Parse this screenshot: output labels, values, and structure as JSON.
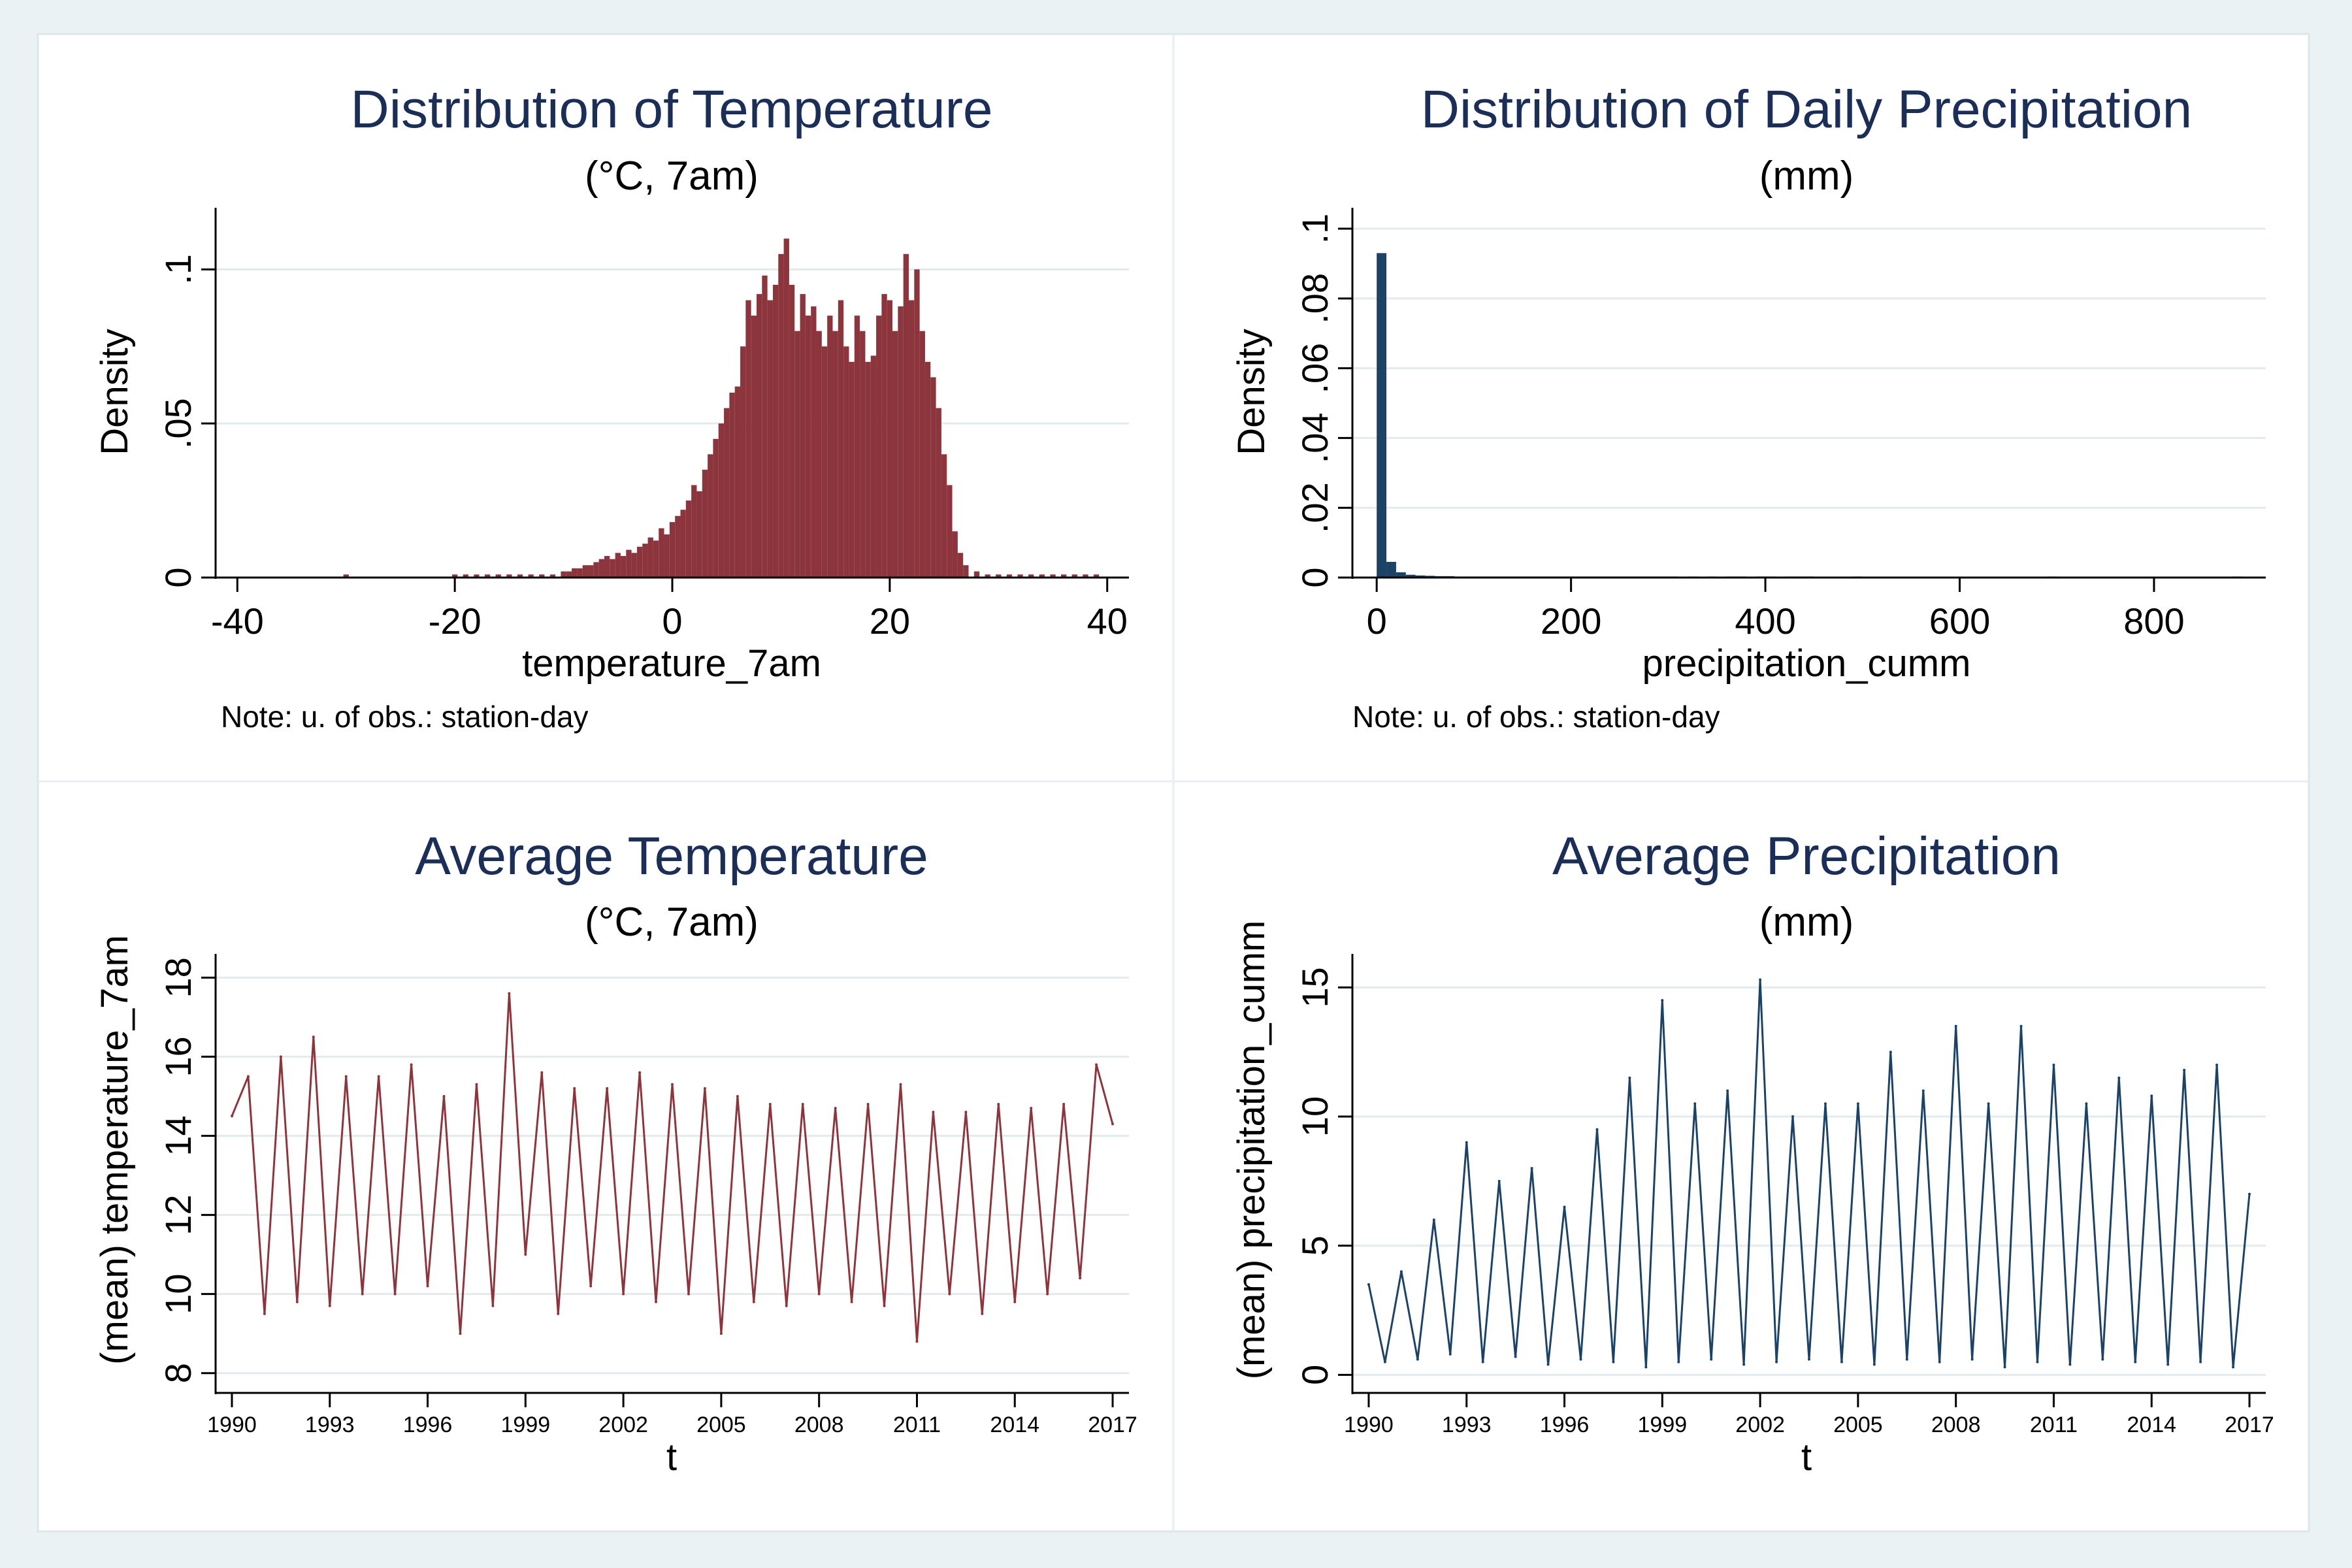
{
  "chart_data": [
    {
      "type": "bar",
      "title": "Distribution of Temperature",
      "subtitle": "(°C, 7am)",
      "xlabel": "temperature_7am",
      "ylabel": "Density",
      "note": "Note: u. of obs.: station-day",
      "xlim": [
        -42,
        42
      ],
      "ylim": [
        0,
        0.12
      ],
      "xticks": [
        "-40",
        "-20",
        "0",
        "20",
        "40"
      ],
      "yticks": [
        "0",
        ".05",
        ".1"
      ],
      "color": "#8c353d",
      "bin_width": 0.5,
      "x": [
        -30,
        -20,
        -19,
        -18,
        -17,
        -16,
        -15,
        -14,
        -13,
        -12,
        -11,
        -10,
        -9.5,
        -9,
        -8.5,
        -8,
        -7.5,
        -7,
        -6.5,
        -6,
        -5.5,
        -5,
        -4.5,
        -4,
        -3.5,
        -3,
        -2.5,
        -2,
        -1.5,
        -1,
        -0.5,
        0,
        0.5,
        1,
        1.5,
        2,
        2.5,
        3,
        3.5,
        4,
        4.5,
        5,
        5.5,
        6,
        6.5,
        7,
        7.5,
        8,
        8.5,
        9,
        9.5,
        10,
        10.5,
        11,
        11.5,
        12,
        12.5,
        13,
        13.5,
        14,
        14.5,
        15,
        15.5,
        16,
        16.5,
        17,
        17.5,
        18,
        18.5,
        19,
        19.5,
        20,
        20.5,
        21,
        21.5,
        22,
        22.5,
        23,
        23.5,
        24,
        24.5,
        25,
        25.5,
        26,
        26.5,
        27,
        28,
        29,
        30,
        31,
        32,
        33,
        34,
        35,
        36,
        37,
        38,
        39
      ],
      "values": [
        0.001,
        0.001,
        0.001,
        0.001,
        0.001,
        0.001,
        0.001,
        0.001,
        0.001,
        0.001,
        0.001,
        0.002,
        0.002,
        0.003,
        0.003,
        0.004,
        0.004,
        0.005,
        0.006,
        0.007,
        0.006,
        0.008,
        0.007,
        0.009,
        0.008,
        0.01,
        0.011,
        0.013,
        0.012,
        0.016,
        0.014,
        0.018,
        0.02,
        0.022,
        0.025,
        0.03,
        0.028,
        0.035,
        0.04,
        0.045,
        0.05,
        0.055,
        0.06,
        0.062,
        0.075,
        0.09,
        0.085,
        0.092,
        0.098,
        0.09,
        0.095,
        0.105,
        0.11,
        0.095,
        0.08,
        0.092,
        0.085,
        0.088,
        0.08,
        0.075,
        0.085,
        0.08,
        0.09,
        0.075,
        0.07,
        0.085,
        0.08,
        0.07,
        0.072,
        0.085,
        0.092,
        0.09,
        0.08,
        0.088,
        0.105,
        0.09,
        0.1,
        0.08,
        0.07,
        0.065,
        0.055,
        0.04,
        0.03,
        0.015,
        0.008,
        0.004,
        0.002,
        0.001,
        0.001,
        0.001,
        0.001,
        0.001,
        0.001,
        0.001,
        0.001,
        0.001,
        0.001,
        0.001
      ]
    },
    {
      "type": "bar",
      "title": "Distribution of Daily Precipitation",
      "subtitle": "(mm)",
      "xlabel": "precipitation_cumm",
      "ylabel": "Density",
      "note": "Note: u. of obs.: station-day",
      "xlim": [
        -25,
        915
      ],
      "ylim": [
        0,
        0.106
      ],
      "xticks": [
        "0",
        "200",
        "400",
        "600",
        "800"
      ],
      "yticks": [
        "0",
        ".02",
        ".04",
        ".06",
        ".08",
        ".1"
      ],
      "color": "#1c4366",
      "bin_width": 10,
      "x": [
        5,
        15,
        25,
        35,
        45,
        55,
        65,
        75,
        85,
        95,
        105,
        115,
        125,
        135,
        145,
        155,
        165,
        175,
        185,
        195,
        205,
        215,
        225,
        235,
        245,
        255,
        265,
        275,
        285,
        295,
        305,
        325,
        345,
        365,
        375,
        395,
        405,
        425,
        435,
        445,
        495,
        695,
        885
      ],
      "values": [
        0.093,
        0.0045,
        0.0015,
        0.0008,
        0.0006,
        0.0005,
        0.0004,
        0.0004,
        0.0003,
        0.0003,
        0.0003,
        0.0003,
        0.0003,
        0.0003,
        0.0003,
        0.0003,
        0.0003,
        0.0003,
        0.0003,
        0.0003,
        0.0003,
        0.0003,
        0.0003,
        0.0003,
        0.0003,
        0.0003,
        0.0003,
        0.0003,
        0.0003,
        0.0003,
        0.0003,
        0.0003,
        0.0003,
        0.0003,
        0.0003,
        0.0003,
        0.0003,
        0.0003,
        0.0003,
        0.0003,
        0.0003,
        0.0003,
        0.0003
      ]
    },
    {
      "type": "line",
      "title": "Average Temperature",
      "subtitle": "(°C, 7am)",
      "xlabel": "t",
      "ylabel": "(mean) temperature_7am",
      "xlim": [
        1989.5,
        2017.5
      ],
      "ylim": [
        7.5,
        18.6
      ],
      "xticks": [
        "1990",
        "1993",
        "1996",
        "1999",
        "2002",
        "2005",
        "2008",
        "2011",
        "2014",
        "2017"
      ],
      "yticks": [
        "8",
        "10",
        "12",
        "14",
        "16",
        "18"
      ],
      "color": "#8c353d",
      "x": [
        1990.0,
        1990.5,
        1991.0,
        1991.5,
        1992.0,
        1992.5,
        1993.0,
        1993.5,
        1994.0,
        1994.5,
        1995.0,
        1995.5,
        1996.0,
        1996.5,
        1997.0,
        1997.5,
        1998.0,
        1998.5,
        1999.0,
        1999.5,
        2000.0,
        2000.5,
        2001.0,
        2001.5,
        2002.0,
        2002.5,
        2003.0,
        2003.5,
        2004.0,
        2004.5,
        2005.0,
        2005.5,
        2006.0,
        2006.5,
        2007.0,
        2007.5,
        2008.0,
        2008.5,
        2009.0,
        2009.5,
        2010.0,
        2010.5,
        2011.0,
        2011.5,
        2012.0,
        2012.5,
        2013.0,
        2013.5,
        2014.0,
        2014.5,
        2015.0,
        2015.5,
        2016.0,
        2016.5,
        2017.0
      ],
      "values": [
        14.5,
        15.5,
        9.5,
        16.0,
        9.8,
        16.5,
        9.7,
        15.5,
        10.0,
        15.5,
        10.0,
        15.8,
        10.2,
        15.0,
        9.0,
        15.3,
        9.7,
        17.6,
        11.0,
        15.6,
        9.5,
        15.2,
        10.2,
        15.2,
        10.0,
        15.6,
        9.8,
        15.3,
        10.0,
        15.2,
        9.0,
        15.0,
        9.8,
        14.8,
        9.7,
        14.8,
        10.0,
        14.7,
        9.8,
        14.8,
        9.7,
        15.3,
        8.8,
        14.6,
        10.0,
        14.6,
        9.5,
        14.8,
        9.8,
        14.7,
        10.0,
        14.8,
        10.4,
        15.8,
        14.3
      ]
    },
    {
      "type": "line",
      "title": "Average Precipitation",
      "subtitle": "(mm)",
      "xlabel": "t",
      "ylabel": "(mean) precipitation_cumm",
      "xlim": [
        1989.5,
        2017.5
      ],
      "ylim": [
        -0.7,
        16.3
      ],
      "xticks": [
        "1990",
        "1993",
        "1996",
        "1999",
        "2002",
        "2005",
        "2008",
        "2011",
        "2014",
        "2017"
      ],
      "yticks": [
        "0",
        "5",
        "10",
        "15"
      ],
      "color": "#1c4366",
      "x": [
        1990.0,
        1990.5,
        1991.0,
        1991.5,
        1992.0,
        1992.5,
        1993.0,
        1993.5,
        1994.0,
        1994.5,
        1995.0,
        1995.5,
        1996.0,
        1996.5,
        1997.0,
        1997.5,
        1998.0,
        1998.5,
        1999.0,
        1999.5,
        2000.0,
        2000.5,
        2001.0,
        2001.5,
        2002.0,
        2002.5,
        2003.0,
        2003.5,
        2004.0,
        2004.5,
        2005.0,
        2005.5,
        2006.0,
        2006.5,
        2007.0,
        2007.5,
        2008.0,
        2008.5,
        2009.0,
        2009.5,
        2010.0,
        2010.5,
        2011.0,
        2011.5,
        2012.0,
        2012.5,
        2013.0,
        2013.5,
        2014.0,
        2014.5,
        2015.0,
        2015.5,
        2016.0,
        2016.5,
        2017.0
      ],
      "values": [
        3.5,
        0.5,
        4.0,
        0.6,
        6.0,
        0.8,
        9.0,
        0.5,
        7.5,
        0.7,
        8.0,
        0.4,
        6.5,
        0.6,
        9.5,
        0.5,
        11.5,
        0.3,
        14.5,
        0.5,
        10.5,
        0.6,
        11.0,
        0.4,
        15.3,
        0.5,
        10.0,
        0.6,
        10.5,
        0.5,
        10.5,
        0.4,
        12.5,
        0.6,
        11.0,
        0.5,
        13.5,
        0.6,
        10.5,
        0.3,
        13.5,
        0.5,
        12.0,
        0.4,
        10.5,
        0.6,
        11.5,
        0.5,
        10.8,
        0.4,
        11.8,
        0.5,
        12.0,
        0.3,
        7.0
      ]
    }
  ]
}
